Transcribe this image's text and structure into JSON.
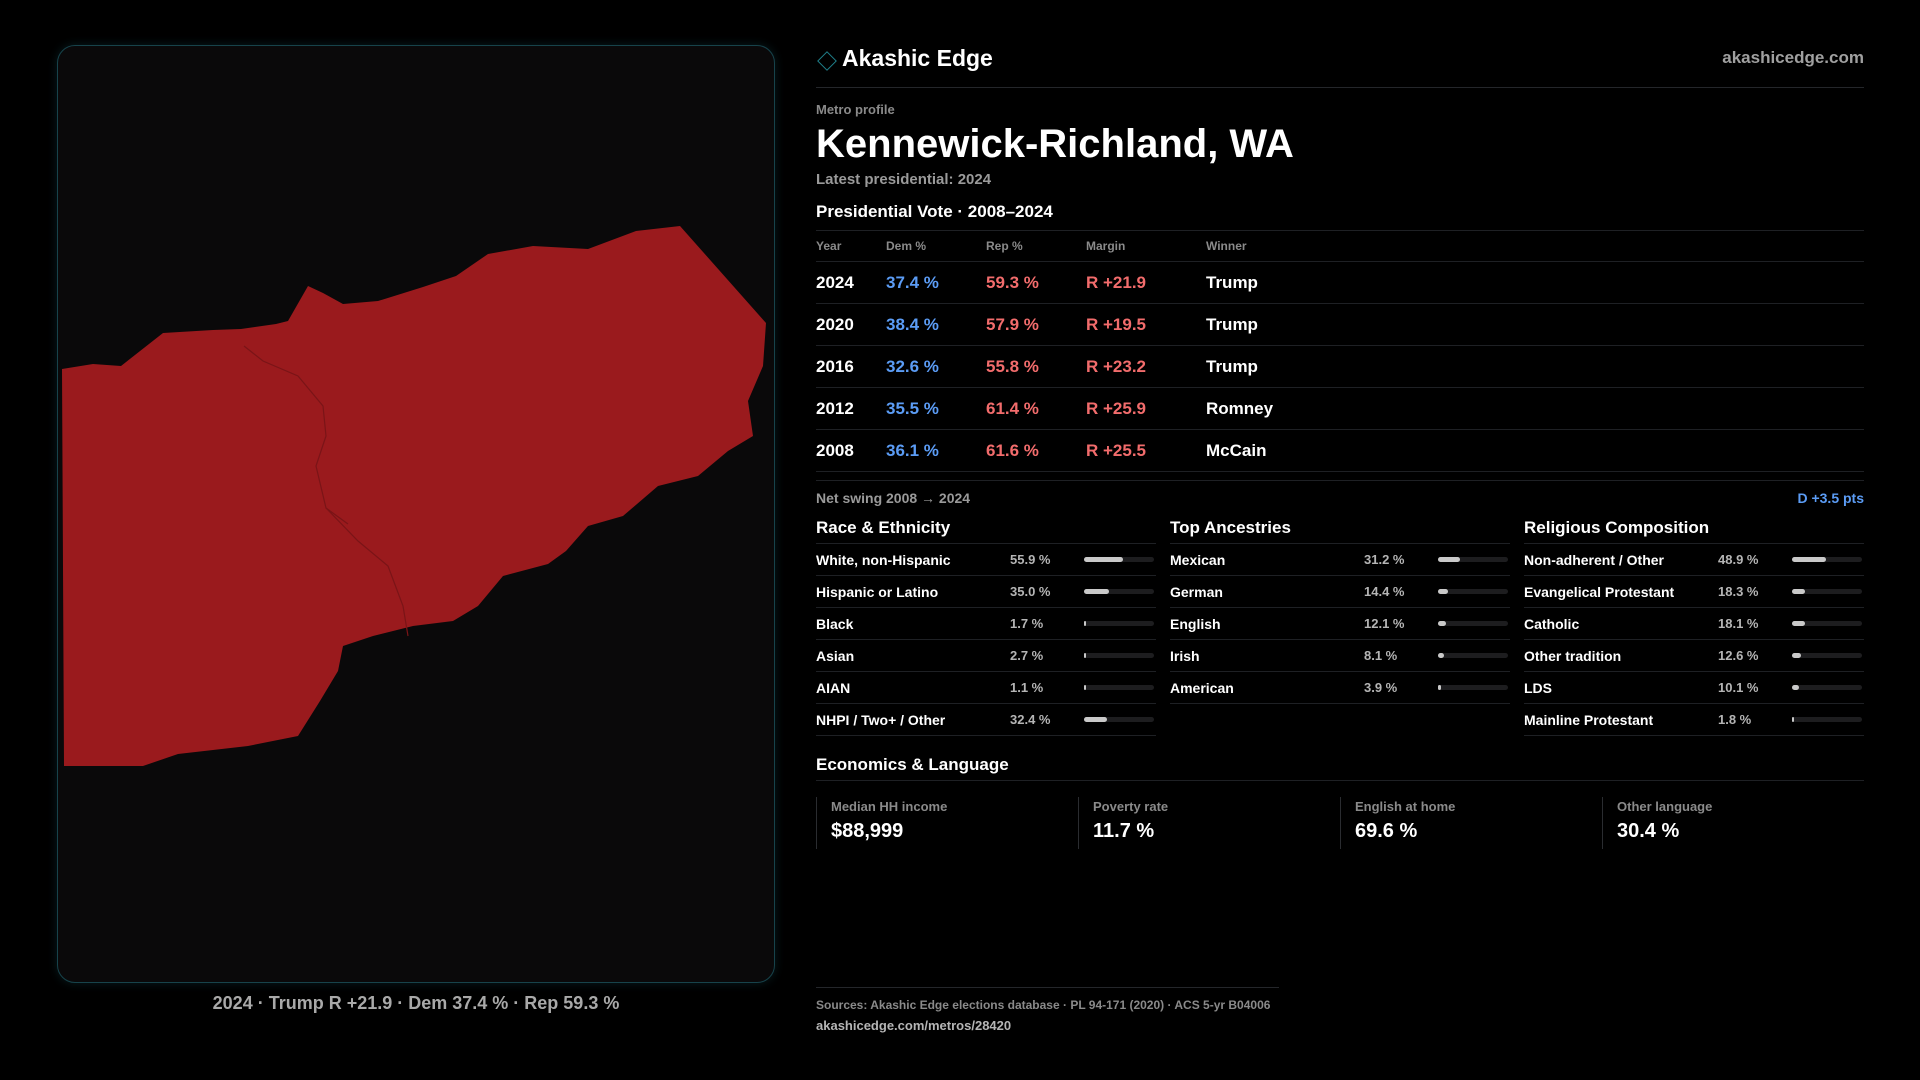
{
  "brand": {
    "name": "Akashic Edge",
    "domain": "akashicedge.com",
    "icon": "diamond-icon",
    "accent": "#1f7f8a"
  },
  "profile": {
    "eyebrow": "Metro profile",
    "title": "Kennewick-Richland, WA",
    "latest": "Latest presidential: 2024"
  },
  "map": {
    "fill": "#9a1a1d",
    "caption": "2024 · Trump R +21.9 · Dem 37.4 % · Rep 59.3 %"
  },
  "votes": {
    "title": "Presidential Vote · 2008–2024",
    "headers": [
      "Year",
      "Dem %",
      "Rep %",
      "Margin",
      "Winner"
    ],
    "rows": [
      {
        "year": "2024",
        "dem": "37.4 %",
        "rep": "59.3 %",
        "margin": "R +21.9",
        "winner": "Trump"
      },
      {
        "year": "2020",
        "dem": "38.4 %",
        "rep": "57.9 %",
        "margin": "R +19.5",
        "winner": "Trump"
      },
      {
        "year": "2016",
        "dem": "32.6 %",
        "rep": "55.8 %",
        "margin": "R +23.2",
        "winner": "Trump"
      },
      {
        "year": "2012",
        "dem": "35.5 %",
        "rep": "61.4 %",
        "margin": "R +25.9",
        "winner": "Romney"
      },
      {
        "year": "2008",
        "dem": "36.1 %",
        "rep": "61.6 %",
        "margin": "R +25.5",
        "winner": "McCain"
      }
    ],
    "colors": {
      "dem": "#5b9cf5",
      "rep": "#f26c6c"
    }
  },
  "net_swing": {
    "label": "Net swing 2008 → 2024",
    "value": "D +3.5 pts"
  },
  "race": {
    "title": "Race & Ethnicity",
    "rows": [
      {
        "label": "White, non-Hispanic",
        "value": "55.9 %",
        "pct": 55.9
      },
      {
        "label": "Hispanic or Latino",
        "value": "35.0 %",
        "pct": 35.0
      },
      {
        "label": "Black",
        "value": "1.7 %",
        "pct": 1.7
      },
      {
        "label": "Asian",
        "value": "2.7 %",
        "pct": 2.7
      },
      {
        "label": "AIAN",
        "value": "1.1 %",
        "pct": 1.1
      },
      {
        "label": "NHPI / Two+ / Other",
        "value": "32.4 %",
        "pct": 32.4
      }
    ]
  },
  "ancestry": {
    "title": "Top Ancestries",
    "rows": [
      {
        "label": "Mexican",
        "value": "31.2 %",
        "pct": 31.2
      },
      {
        "label": "German",
        "value": "14.4 %",
        "pct": 14.4
      },
      {
        "label": "English",
        "value": "12.1 %",
        "pct": 12.1
      },
      {
        "label": "Irish",
        "value": "8.1 %",
        "pct": 8.1
      },
      {
        "label": "American",
        "value": "3.9 %",
        "pct": 3.9
      }
    ]
  },
  "religion": {
    "title": "Religious Composition",
    "rows": [
      {
        "label": "Non-adherent / Other",
        "value": "48.9 %",
        "pct": 48.9
      },
      {
        "label": "Evangelical Protestant",
        "value": "18.3 %",
        "pct": 18.3
      },
      {
        "label": "Catholic",
        "value": "18.1 %",
        "pct": 18.1
      },
      {
        "label": "Other tradition",
        "value": "12.6 %",
        "pct": 12.6
      },
      {
        "label": "LDS",
        "value": "10.1 %",
        "pct": 10.1
      },
      {
        "label": "Mainline Protestant",
        "value": "1.8 %",
        "pct": 1.8
      }
    ]
  },
  "economics": {
    "title": "Economics & Language",
    "cards": [
      {
        "label": "Median HH income",
        "value": "$88,999"
      },
      {
        "label": "Poverty rate",
        "value": "11.7 %"
      },
      {
        "label": "English at home",
        "value": "69.6 %"
      },
      {
        "label": "Other language",
        "value": "30.4 %"
      }
    ]
  },
  "footer": {
    "sources": "Sources: Akashic Edge elections database · PL 94-171 (2020) · ACS 5-yr B04006",
    "url": "akashicedge.com/metros/28420"
  }
}
